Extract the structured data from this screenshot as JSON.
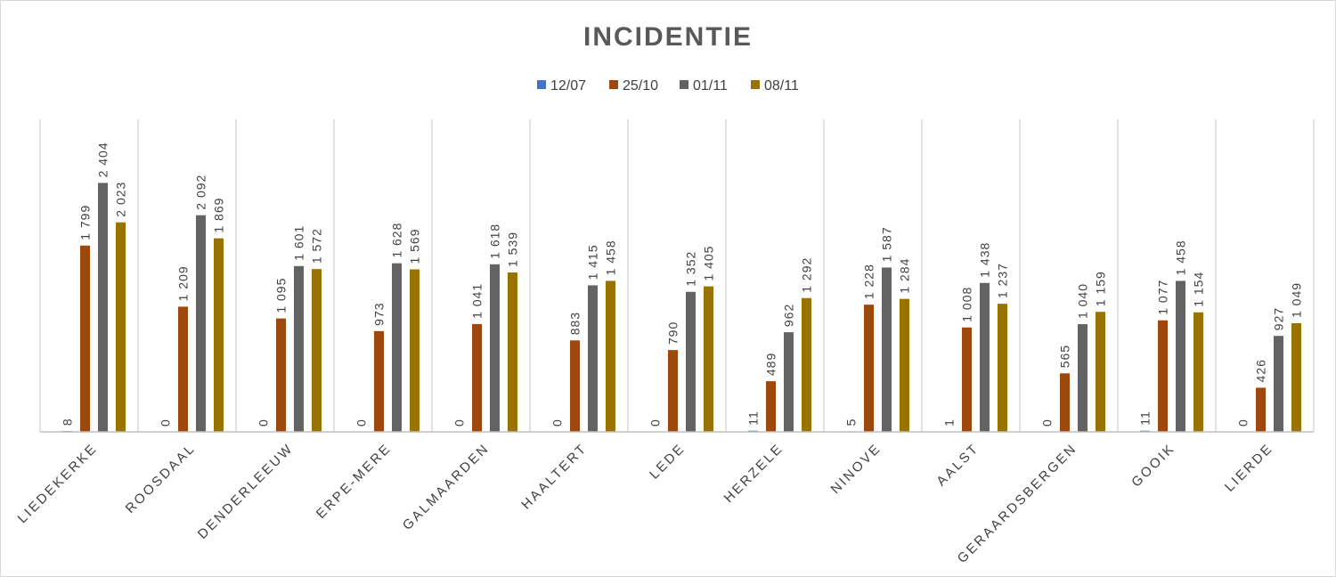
{
  "chart_data": {
    "type": "bar",
    "title": "INCIDENTIE",
    "xlabel": "",
    "ylabel": "",
    "ylim": [
      0,
      2800
    ],
    "legend_position": "top-center",
    "grid": "vertical category separators",
    "categories": [
      "LIEDEKERKE",
      "ROOSDAAL",
      "DENDERLEEUW",
      "ERPE-MERE",
      "GALMAARDEN",
      "HAALTERT",
      "LEDE",
      "HERZELE",
      "NINOVE",
      "AALST",
      "GERAARDSBERGEN",
      "GOOIK",
      "LIERDE"
    ],
    "series": [
      {
        "name": "12/07",
        "color": "#4472c4",
        "values": [
          8,
          0,
          0,
          0,
          0,
          0,
          0,
          11,
          5,
          1,
          0,
          11,
          0
        ],
        "labels": [
          "8",
          "0",
          "0",
          "0",
          "0",
          "0",
          "0",
          "11",
          "5",
          "1",
          "0",
          "11",
          "0"
        ]
      },
      {
        "name": "25/10",
        "color": "#9e480e",
        "values": [
          1799,
          1209,
          1095,
          973,
          1041,
          883,
          790,
          489,
          1228,
          1008,
          565,
          1077,
          426
        ],
        "labels": [
          "1 799",
          "1 209",
          "1 095",
          "973",
          "1 041",
          "883",
          "790",
          "489",
          "1 228",
          "1 008",
          "565",
          "1 077",
          "426"
        ]
      },
      {
        "name": "01/11",
        "color": "#636363",
        "values": [
          2404,
          2092,
          1601,
          1628,
          1618,
          1415,
          1352,
          962,
          1587,
          1438,
          1040,
          1458,
          927
        ],
        "labels": [
          "2 404",
          "2 092",
          "1 601",
          "1 628",
          "1 618",
          "1 415",
          "1 352",
          "962",
          "1 587",
          "1 438",
          "1 040",
          "1 458",
          "927"
        ]
      },
      {
        "name": "08/11",
        "color": "#997300",
        "values": [
          2023,
          1869,
          1572,
          1569,
          1539,
          1458,
          1405,
          1292,
          1284,
          1237,
          1159,
          1154,
          1049
        ],
        "labels": [
          "2 023",
          "1 869",
          "1 572",
          "1 569",
          "1 539",
          "1 458",
          "1 405",
          "1 292",
          "1 284",
          "1 237",
          "1 159",
          "1 154",
          "1 049"
        ]
      }
    ]
  }
}
